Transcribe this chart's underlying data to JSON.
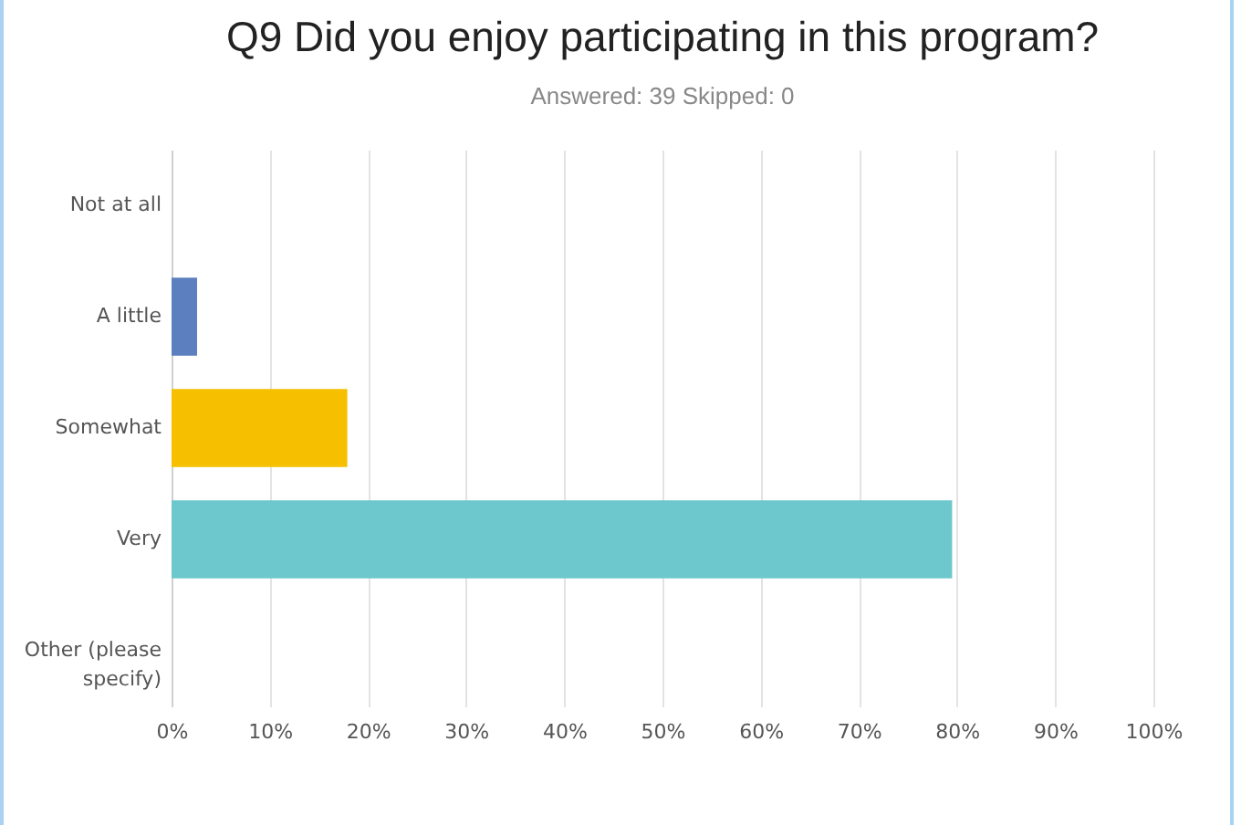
{
  "chart_data": {
    "type": "bar",
    "orientation": "horizontal",
    "title": "Q9 Did you enjoy participating in this program?",
    "subtitle": "Answered: 39    Skipped: 0",
    "categories": [
      "Not at all",
      "A little",
      "Somewhat",
      "Very",
      "Other (please specify)"
    ],
    "values": [
      0,
      2.6,
      17.9,
      79.5,
      0
    ],
    "colors": [
      "#6e9be0",
      "#5b7fbf",
      "#f6bf00",
      "#6cc8cc",
      "#e0a030"
    ],
    "xlim": [
      0,
      100
    ],
    "xticks": [
      {
        "value": 0,
        "label": "0%"
      },
      {
        "value": 10,
        "label": "10%"
      },
      {
        "value": 20,
        "label": "20%"
      },
      {
        "value": 30,
        "label": "30%"
      },
      {
        "value": 40,
        "label": "40%"
      },
      {
        "value": 50,
        "label": "50%"
      },
      {
        "value": 60,
        "label": "60%"
      },
      {
        "value": 70,
        "label": "70%"
      },
      {
        "value": 80,
        "label": "80%"
      },
      {
        "value": 90,
        "label": "90%"
      },
      {
        "value": 100,
        "label": "100%"
      }
    ],
    "grid": "x"
  }
}
